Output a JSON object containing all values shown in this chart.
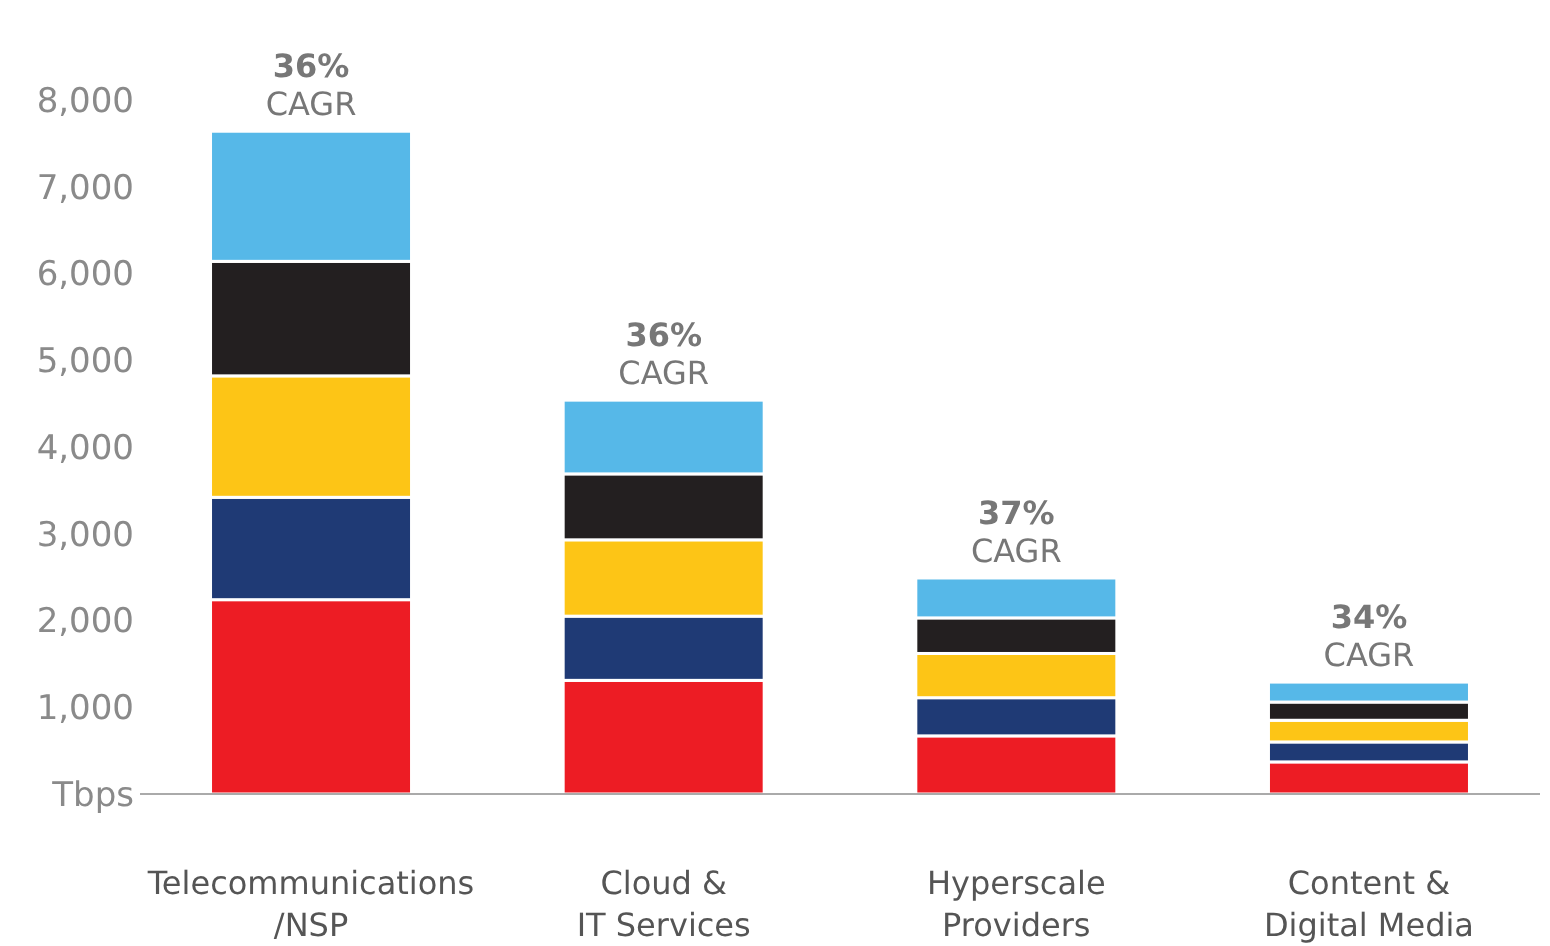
{
  "chart_data": {
    "type": "bar",
    "stacked": true,
    "categories": [
      "Telecommunications\n/NSP",
      "Cloud &\nIT Services",
      "Hyperscale\nProviders",
      "Content &\nDigital Media"
    ],
    "series": [
      {
        "color": "#ed1c24",
        "values": [
          2240,
          1310,
          670,
          370
        ]
      },
      {
        "color": "#1f3a75",
        "values": [
          1180,
          740,
          440,
          230
        ]
      },
      {
        "color": "#fdc516",
        "values": [
          1400,
          880,
          510,
          250
        ]
      },
      {
        "color": "#231f20",
        "values": [
          1320,
          760,
          410,
          210
        ]
      },
      {
        "color": "#56b8e8",
        "values": [
          1500,
          850,
          460,
          230
        ]
      }
    ],
    "ylim": [
      0,
      8000
    ],
    "yticks": [
      {
        "value": 0,
        "label": "Tbps"
      },
      {
        "value": 1000,
        "label": "1,000"
      },
      {
        "value": 2000,
        "label": "2,000"
      },
      {
        "value": 3000,
        "label": "3,000"
      },
      {
        "value": 4000,
        "label": "4,000"
      },
      {
        "value": 5000,
        "label": "5,000"
      },
      {
        "value": 6000,
        "label": "6,000"
      },
      {
        "value": 7000,
        "label": "7,000"
      },
      {
        "value": 8000,
        "label": "8,000"
      }
    ],
    "grid": false,
    "annotations": [
      {
        "text": "36%\nCAGR",
        "x": "Telecommunications\n/NSP",
        "y": 7640
      },
      {
        "text": "36%\nCAGR",
        "x": "Cloud &\nIT Services",
        "y": 4540
      },
      {
        "text": "37%\nCAGR",
        "x": "Hyperscale\nProviders",
        "y": 2490
      },
      {
        "text": "34%\nCAGR",
        "x": "Content &\nDigital Media",
        "y": 1290
      }
    ]
  }
}
